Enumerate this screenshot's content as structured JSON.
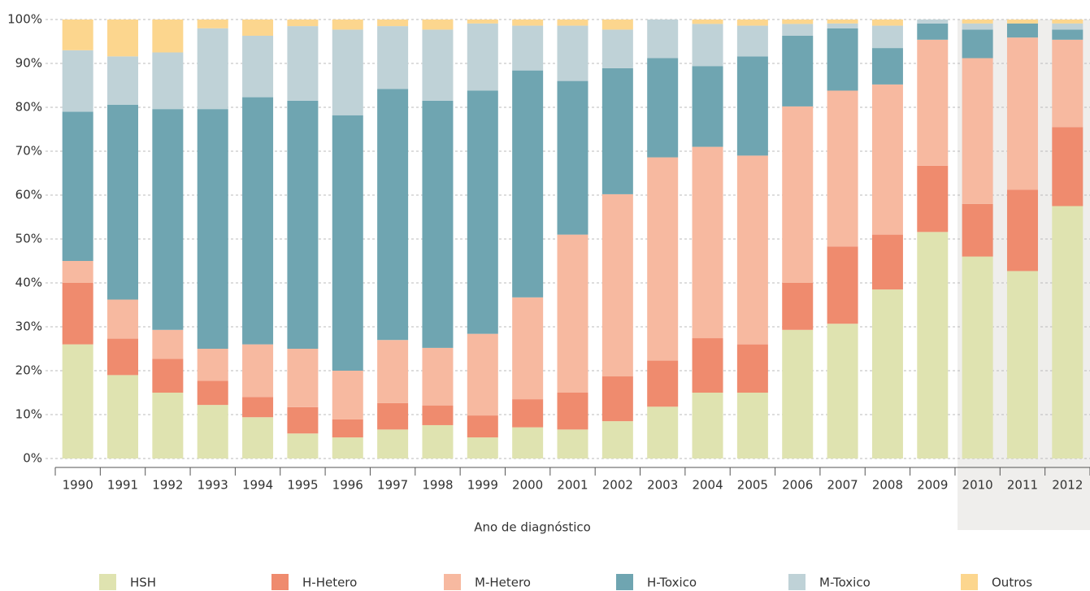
{
  "chart_data": {
    "type": "stacked_bar",
    "x_label": "Ano de diagnóstico",
    "categories": [
      "1990",
      "1991",
      "1992",
      "1993",
      "1994",
      "1995",
      "1996",
      "1997",
      "1998",
      "1999",
      "2000",
      "2001",
      "2002",
      "2003",
      "2004",
      "2005",
      "2006",
      "2007",
      "2008",
      "2009",
      "2010",
      "2011",
      "2012"
    ],
    "series": [
      {
        "name": "HSH",
        "color": "#dfe3b0",
        "values": [
          26,
          19,
          15,
          12.2,
          9.4,
          5.7,
          4.8,
          6.6,
          7.6,
          4.8,
          7.1,
          6.6,
          8.5,
          11.8,
          15,
          15,
          29.3,
          30.7,
          38.5,
          51.6,
          46,
          42.7,
          57.5
        ]
      },
      {
        "name": "H-Hetero",
        "color": "#ef8b6e",
        "values": [
          14,
          8.3,
          7.7,
          5.5,
          4.6,
          6,
          4.1,
          6,
          4.5,
          5,
          6.4,
          8.4,
          10.2,
          10.5,
          12.4,
          11,
          10.7,
          17.6,
          12.5,
          15.1,
          12,
          18.5,
          18
        ]
      },
      {
        "name": "M-Hetero",
        "color": "#f7b9a0",
        "values": [
          5,
          8.9,
          6.6,
          7.3,
          12,
          13.3,
          11.1,
          14.4,
          13.1,
          18.6,
          23.2,
          36,
          41.5,
          46.3,
          43.6,
          43,
          40.2,
          35.5,
          34.2,
          28.7,
          33.2,
          34.7,
          19.9
        ]
      },
      {
        "name": "H-Toxico",
        "color": "#6fa5b1",
        "values": [
          34,
          44.4,
          50.3,
          54.6,
          56.3,
          56.5,
          58.2,
          57.2,
          56.3,
          55.4,
          51.7,
          35,
          28.7,
          22.6,
          18.4,
          22.6,
          16.1,
          14.2,
          8.3,
          3.7,
          6.5,
          3.2,
          2.3
        ]
      },
      {
        "name": "M-Toxico",
        "color": "#bfd2d7",
        "values": [
          14,
          11,
          12.9,
          18.4,
          14,
          17,
          19.5,
          14.3,
          16.2,
          15.3,
          10.2,
          12.6,
          8.8,
          8.8,
          9.6,
          7,
          2.7,
          1.1,
          5.1,
          0.9,
          1.4,
          0,
          1.4
        ]
      },
      {
        "name": "Outros",
        "color": "#fcd68e",
        "values": [
          7,
          8.4,
          7.5,
          2,
          3.7,
          1.5,
          2.3,
          1.5,
          2.3,
          0.9,
          1.4,
          1.4,
          2.3,
          0,
          1,
          1.4,
          1,
          0.9,
          1.4,
          0,
          0.9,
          0.9,
          0.9
        ]
      }
    ],
    "ylim": [
      0,
      100
    ],
    "yticks": [
      {
        "value": 0,
        "label": "0%"
      },
      {
        "value": 10,
        "label": "10%"
      },
      {
        "value": 20,
        "label": "20%"
      },
      {
        "value": 30,
        "label": "30%"
      },
      {
        "value": 40,
        "label": "40%"
      },
      {
        "value": 50,
        "label": "50%"
      },
      {
        "value": 60,
        "label": "60%"
      },
      {
        "value": 70,
        "label": "70%"
      },
      {
        "value": 80,
        "label": "80%"
      },
      {
        "value": 90,
        "label": "90%"
      },
      {
        "value": 100,
        "label": "100%"
      }
    ],
    "grid": true
  }
}
